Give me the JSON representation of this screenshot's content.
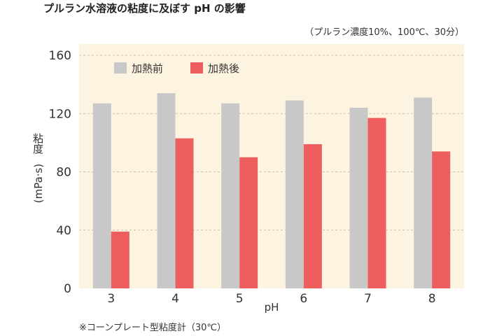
{
  "chart_data": {
    "type": "bar",
    "title": "プルラン水溶液の粘度に及ぼす pH の影響",
    "subtitle": "（プルラン濃度10%、100℃、30分）",
    "xlabel": "pH",
    "ylabel_main": "粘度",
    "ylabel_unit": "(mPa·s)",
    "categories": [
      "3",
      "4",
      "5",
      "6",
      "7",
      "8"
    ],
    "yticks": [
      "0",
      "40",
      "80",
      "120",
      "160"
    ],
    "ylim": [
      0,
      160
    ],
    "grid": true,
    "legend_position": "top-left",
    "series": [
      {
        "name": "加熱前",
        "color": "#c8c8c8",
        "values": [
          127,
          134,
          127,
          129,
          124,
          131
        ]
      },
      {
        "name": "加熱後",
        "color": "#ee5e5e",
        "values": [
          39,
          103,
          90,
          99,
          117,
          94
        ]
      }
    ],
    "footnote": "※コーンプレート型粘度計（30℃）",
    "plot_background": "#fdf3e1"
  }
}
